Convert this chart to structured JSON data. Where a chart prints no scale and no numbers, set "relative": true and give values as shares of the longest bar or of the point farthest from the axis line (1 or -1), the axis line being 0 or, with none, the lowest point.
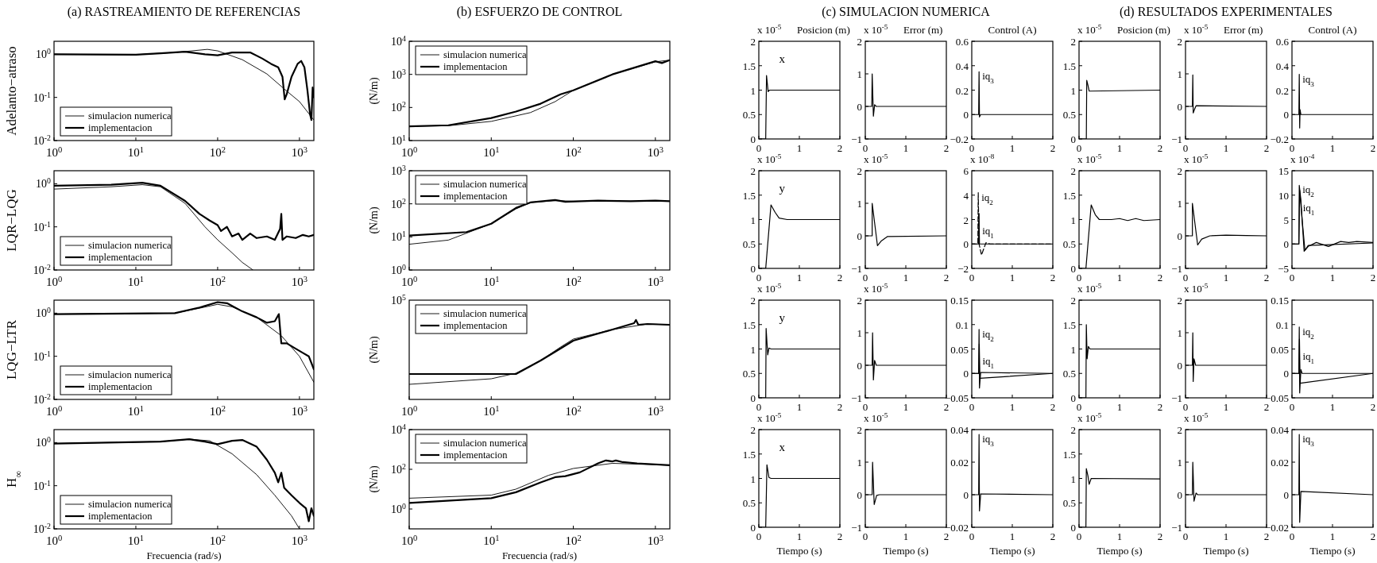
{
  "chart_data": [
    {
      "type": "line",
      "title": "(a) RASTREAMIENTO DE REFERENCIAS",
      "ylabel": "Adelanto−atraso",
      "log": "xy",
      "legend": "bottom left",
      "xlim": [
        1,
        1500
      ],
      "ylim": [
        0.01,
        2
      ],
      "xticks": [
        {
          "value": 1,
          "label": "10$^{0}$"
        },
        {
          "value": 10,
          "label": "10$^{1}$"
        },
        {
          "value": 100,
          "label": "10$^{2}$"
        },
        {
          "value": 1000,
          "label": "10$^{3}$"
        }
      ],
      "yticks": [
        {
          "value": 0.01,
          "label": "10$^{-2}$"
        },
        {
          "value": 0.1,
          "label": "10$^{-1}$"
        },
        {
          "value": 1,
          "label": "10$^{0}$"
        }
      ],
      "series": [
        {
          "name": "simulacion numerica",
          "color": "#000000",
          "x": [
            1,
            10,
            30,
            75,
            100,
            200,
            400,
            700,
            1000,
            1500
          ],
          "values": [
            1,
            0.98,
            1.1,
            1.3,
            1.2,
            0.75,
            0.35,
            0.14,
            0.08,
            0.03
          ]
        },
        {
          "name": "implementacion",
          "color": "#000000",
          "x": [
            1,
            10,
            20,
            40,
            70,
            100,
            150,
            250,
            350,
            450,
            550,
            620,
            660,
            700,
            800,
            950,
            1050,
            1150,
            1250,
            1350,
            1400,
            1450,
            1500
          ],
          "values": [
            1,
            0.98,
            1.05,
            1.15,
            1.0,
            0.95,
            1.1,
            1.1,
            0.8,
            0.6,
            0.5,
            0.3,
            0.09,
            0.12,
            0.3,
            0.6,
            0.7,
            0.5,
            0.15,
            0.04,
            0.03,
            0.17,
            0.1
          ]
        }
      ]
    },
    {
      "type": "line",
      "ylabel": "LQR−LQG",
      "log": "xy",
      "legend": "bottom left",
      "xlim": [
        1,
        1500
      ],
      "ylim": [
        0.01,
        2
      ],
      "xticks": [
        {
          "value": 1,
          "label": "10$^{0}$"
        },
        {
          "value": 10,
          "label": "10$^{1}$"
        },
        {
          "value": 100,
          "label": "10$^{2}$"
        },
        {
          "value": 1000,
          "label": "10$^{3}$"
        }
      ],
      "yticks": [
        {
          "value": 0.01,
          "label": "10$^{-2}$"
        },
        {
          "value": 0.1,
          "label": "10$^{-1}$"
        },
        {
          "value": 1,
          "label": "10$^{0}$"
        }
      ],
      "series": [
        {
          "name": "simulacion numerica",
          "color": "#000000",
          "x": [
            1,
            5,
            12,
            20,
            40,
            70,
            100,
            150,
            200,
            270
          ],
          "values": [
            0.75,
            0.85,
            0.95,
            0.85,
            0.35,
            0.1,
            0.05,
            0.025,
            0.015,
            0.01
          ]
        },
        {
          "name": "implementacion",
          "color": "#000000",
          "x": [
            1,
            5,
            12,
            20,
            40,
            60,
            80,
            100,
            110,
            130,
            150,
            180,
            200,
            250,
            300,
            400,
            500,
            580,
            600,
            620,
            700,
            900,
            1100,
            1300,
            1500
          ],
          "values": [
            0.9,
            0.95,
            1.05,
            0.9,
            0.4,
            0.2,
            0.14,
            0.11,
            0.08,
            0.1,
            0.06,
            0.07,
            0.05,
            0.07,
            0.055,
            0.06,
            0.05,
            0.09,
            0.2,
            0.05,
            0.06,
            0.055,
            0.065,
            0.06,
            0.065
          ]
        }
      ]
    },
    {
      "type": "line",
      "ylabel": "LQG−LTR",
      "log": "xy",
      "legend": "bottom left",
      "xlim": [
        1,
        1500
      ],
      "ylim": [
        0.01,
        2
      ],
      "xticks": [
        {
          "value": 1,
          "label": "10$^{0}$"
        },
        {
          "value": 10,
          "label": "10$^{1}$"
        },
        {
          "value": 100,
          "label": "10$^{2}$"
        },
        {
          "value": 1000,
          "label": "10$^{3}$"
        }
      ],
      "yticks": [
        {
          "value": 0.01,
          "label": "10$^{-2}$"
        },
        {
          "value": 0.1,
          "label": "10$^{-1}$"
        },
        {
          "value": 1,
          "label": "10$^{0}$"
        }
      ],
      "series": [
        {
          "name": "simulacion numerica",
          "color": "#000000",
          "x": [
            1,
            30,
            60,
            100,
            150,
            300,
            600,
            1000,
            1500
          ],
          "values": [
            0.95,
            1.0,
            1.3,
            1.6,
            1.4,
            0.8,
            0.3,
            0.1,
            0.025
          ]
        },
        {
          "name": "implementacion",
          "color": "#000000",
          "x": [
            1,
            30,
            60,
            100,
            130,
            200,
            300,
            400,
            500,
            560,
            600,
            700,
            900,
            1100,
            1300,
            1500
          ],
          "values": [
            0.95,
            1.0,
            1.35,
            1.8,
            1.7,
            1.1,
            0.8,
            0.6,
            0.65,
            0.95,
            0.2,
            0.2,
            0.15,
            0.12,
            0.1,
            0.05
          ]
        }
      ]
    },
    {
      "type": "line",
      "ylabel": "H$_{∞}$",
      "xlabel": "Frecuencia (rad/s)",
      "log": "xy",
      "legend": "bottom left",
      "xlim": [
        1,
        1500
      ],
      "ylim": [
        0.01,
        2
      ],
      "xticks": [
        {
          "value": 1,
          "label": "10$^{0}$"
        },
        {
          "value": 10,
          "label": "10$^{1}$"
        },
        {
          "value": 100,
          "label": "10$^{2}$"
        },
        {
          "value": 1000,
          "label": "10$^{3}$"
        }
      ],
      "yticks": [
        {
          "value": 0.01,
          "label": "10$^{-2}$"
        },
        {
          "value": 0.1,
          "label": "10$^{-1}$"
        },
        {
          "value": 1,
          "label": "10$^{0}$"
        }
      ],
      "series": [
        {
          "name": "simulacion numerica",
          "color": "#000000",
          "x": [
            1,
            20,
            45,
            80,
            150,
            300,
            500,
            800,
            1000
          ],
          "values": [
            0.95,
            1.05,
            1.2,
            1.1,
            0.55,
            0.18,
            0.06,
            0.02,
            0.01
          ]
        },
        {
          "name": "implementacion",
          "color": "#000000",
          "x": [
            1,
            20,
            45,
            70,
            100,
            150,
            200,
            300,
            400,
            500,
            550,
            600,
            650,
            800,
            1000,
            1200,
            1300,
            1400,
            1500
          ],
          "values": [
            0.95,
            1.05,
            1.2,
            1.05,
            0.92,
            1.1,
            1.15,
            0.8,
            0.4,
            0.2,
            0.12,
            0.2,
            0.09,
            0.06,
            0.04,
            0.03,
            0.015,
            0.03,
            0.02
          ]
        }
      ]
    },
    {
      "type": "line",
      "title": "(b) ESFUERZO DE CONTROL",
      "ylabel": "(N/m)",
      "log": "xy",
      "legend": "top left",
      "xlim": [
        1,
        1500
      ],
      "ylim": [
        10,
        10000
      ],
      "xticks": [
        {
          "value": 1,
          "label": "10$^{0}$"
        },
        {
          "value": 10,
          "label": "10$^{1}$"
        },
        {
          "value": 100,
          "label": "10$^{2}$"
        },
        {
          "value": 1000,
          "label": "10$^{3}$"
        }
      ],
      "yticks": [
        {
          "value": 10,
          "label": "10$^{1}$"
        },
        {
          "value": 100,
          "label": "10$^{2}$"
        },
        {
          "value": 1000,
          "label": "10$^{3}$"
        },
        {
          "value": 10000,
          "label": "10$^{4}$"
        }
      ],
      "series": [
        {
          "name": "simulacion numerica",
          "color": "#000000",
          "x": [
            1,
            3,
            10,
            30,
            60,
            100,
            300,
            1000,
            1500
          ],
          "values": [
            27,
            28,
            38,
            70,
            150,
            330,
            1000,
            2400,
            2700
          ]
        },
        {
          "name": "implementacion",
          "color": "#000000",
          "x": [
            1,
            3,
            10,
            20,
            40,
            70,
            100,
            300,
            1000,
            1200,
            1500
          ],
          "values": [
            27,
            29,
            48,
            75,
            130,
            250,
            330,
            1000,
            2500,
            2200,
            2700
          ]
        }
      ]
    },
    {
      "type": "line",
      "ylabel": "(N/m)",
      "log": "xy",
      "legend": "top left",
      "xlim": [
        1,
        1500
      ],
      "ylim": [
        1,
        1000
      ],
      "xticks": [
        {
          "value": 1,
          "label": "10$^{0}$"
        },
        {
          "value": 10,
          "label": "10$^{1}$"
        },
        {
          "value": 100,
          "label": "10$^{2}$"
        },
        {
          "value": 1000,
          "label": "10$^{3}$"
        }
      ],
      "yticks": [
        {
          "value": 1,
          "label": "10$^{0}$"
        },
        {
          "value": 10,
          "label": "10$^{1}$"
        },
        {
          "value": 100,
          "label": "10$^{2}$"
        },
        {
          "value": 1000,
          "label": "10$^{3}$"
        }
      ],
      "series": [
        {
          "name": "simulacion numerica",
          "color": "#000000",
          "x": [
            1,
            3,
            10,
            20,
            30,
            60,
            100,
            1500
          ],
          "values": [
            6,
            8,
            25,
            70,
            110,
            125,
            120,
            120
          ]
        },
        {
          "name": "implementacion",
          "color": "#000000",
          "x": [
            1,
            5,
            10,
            20,
            30,
            60,
            80,
            200,
            500,
            1000,
            1500
          ],
          "values": [
            11,
            14,
            25,
            75,
            110,
            130,
            115,
            125,
            120,
            125,
            120
          ]
        }
      ]
    },
    {
      "type": "line",
      "ylabel": "(N/m)",
      "annotations": [
        "10$^{5}$"
      ],
      "relative": true,
      "log": "x",
      "legend": "top left",
      "xlim": [
        1,
        1500
      ],
      "xticks": [
        {
          "value": 1,
          "label": "10$^{0}$"
        },
        {
          "value": 10,
          "label": "10$^{1}$"
        },
        {
          "value": 100,
          "label": "10$^{2}$"
        },
        {
          "value": 1000,
          "label": "10$^{3}$"
        }
      ],
      "series": [
        {
          "name": "simulacion numerica",
          "color": "#000000",
          "x": [
            1,
            10,
            20,
            40,
            70,
            100,
            300,
            800,
            1500
          ],
          "values": [
            0.19,
            0.26,
            0.33,
            0.49,
            0.66,
            0.76,
            0.88,
            0.95,
            0.94
          ]
        },
        {
          "name": "implementacion",
          "color": "#000000",
          "x": [
            1,
            20,
            40,
            60,
            100,
            300,
            550,
            580,
            620,
            800,
            1500
          ],
          "values": [
            0.32,
            0.32,
            0.49,
            0.6,
            0.74,
            0.88,
            0.96,
            1.0,
            0.94,
            0.95,
            0.94
          ]
        }
      ]
    },
    {
      "type": "line",
      "ylabel": "(N/m)",
      "xlabel": "Frecuencia (rad/s)",
      "log": "xy",
      "legend": "top left",
      "xlim": [
        1,
        1500
      ],
      "ylim": [
        0.1,
        10000
      ],
      "xticks": [
        {
          "value": 1,
          "label": "10$^{0}$"
        },
        {
          "value": 10,
          "label": "10$^{1}$"
        },
        {
          "value": 100,
          "label": "10$^{2}$"
        },
        {
          "value": 1000,
          "label": "10$^{3}$"
        }
      ],
      "yticks": [
        {
          "value": 1,
          "label": "10$^{0}$"
        },
        {
          "value": 100,
          "label": "10$^{2}$"
        },
        {
          "value": 10000,
          "label": "10$^{4}$"
        }
      ],
      "series": [
        {
          "name": "simulacion numerica",
          "color": "#000000",
          "x": [
            1,
            10,
            20,
            50,
            100,
            300,
            1500
          ],
          "values": [
            3.5,
            5,
            10,
            50,
            110,
            200,
            160
          ]
        },
        {
          "name": "implementacion",
          "color": "#000000",
          "x": [
            1,
            10,
            20,
            40,
            60,
            80,
            120,
            200,
            250,
            300,
            330,
            400,
            600,
            1500
          ],
          "values": [
            2,
            3.5,
            7,
            22,
            40,
            45,
            70,
            200,
            280,
            250,
            280,
            230,
            200,
            160
          ]
        }
      ]
    },
    {
      "type": "line",
      "title": "(c) SIMULACION NUMERICA",
      "subtitle": "Posicion (m)",
      "ylabel": "x 10$^{-5}$",
      "annotations": [
        "x"
      ],
      "xlim": [
        0,
        2
      ],
      "ylim": [
        0,
        2
      ],
      "xticks": [
        0,
        1,
        2
      ],
      "yticks": [
        0,
        0.5,
        1,
        1.5,
        2
      ],
      "series": [
        {
          "color": "#000000",
          "x": [
            0,
            0.17,
            0.19,
            0.23,
            0.26,
            2
          ],
          "values": [
            0,
            0,
            1.3,
            0.97,
            1.0,
            1.0
          ]
        }
      ]
    },
    {
      "type": "line",
      "subtitle": "Error (m)",
      "ylabel": "x 10$^{-5}$",
      "xlim": [
        0,
        2
      ],
      "ylim": [
        -1,
        2
      ],
      "xticks": [
        0,
        1,
        2
      ],
      "yticks": [
        -1,
        0,
        1,
        2
      ],
      "series": [
        {
          "color": "#000000",
          "x": [
            0,
            0.16,
            0.17,
            0.2,
            0.23,
            0.27,
            2
          ],
          "values": [
            0,
            0,
            1.0,
            -0.3,
            0.05,
            0,
            0
          ]
        }
      ]
    },
    {
      "type": "line",
      "subtitle": "Control (A)",
      "xlim": [
        0,
        2
      ],
      "ylim": [
        -0.2,
        0.6
      ],
      "xticks": [
        0,
        1,
        2
      ],
      "yticks": [
        -0.2,
        0,
        0.2,
        0.4,
        0.6
      ],
      "series": [
        {
          "name": "iq$_{3}$",
          "color": "#000000",
          "x": [
            0,
            0.17,
            0.18,
            0.19,
            0.22,
            2
          ],
          "values": [
            0,
            0,
            0.35,
            -0.02,
            0,
            0
          ]
        }
      ]
    },
    {
      "type": "line",
      "ylabel": "x 10$^{-5}$",
      "annotations": [
        "y"
      ],
      "xlim": [
        0,
        2
      ],
      "ylim": [
        0,
        2
      ],
      "xticks": [
        0,
        1,
        2
      ],
      "yticks": [
        0,
        0.5,
        1,
        1.5,
        2
      ],
      "series": [
        {
          "color": "#000000",
          "x": [
            0,
            0.17,
            0.3,
            0.4,
            0.5,
            0.7,
            2
          ],
          "values": [
            0,
            0,
            1.3,
            1.15,
            1.03,
            1.0,
            1.0
          ]
        }
      ]
    },
    {
      "type": "line",
      "ylabel": "x 10$^{-5}$",
      "xlim": [
        0,
        2
      ],
      "ylim": [
        -1,
        2
      ],
      "xticks": [
        0,
        1,
        2
      ],
      "yticks": [
        -1,
        0,
        1,
        2
      ],
      "series": [
        {
          "color": "#000000",
          "x": [
            0,
            0.17,
            0.17,
            0.3,
            0.4,
            0.55,
            2
          ],
          "values": [
            0,
            0,
            1,
            -0.3,
            -0.15,
            -0.02,
            0
          ]
        }
      ]
    },
    {
      "type": "line",
      "ylabel": "x 10$^{-8}$",
      "xlim": [
        0,
        2
      ],
      "ylim": [
        -2,
        6
      ],
      "xticks": [
        0,
        1,
        2
      ],
      "yticks": [
        -2,
        0,
        2,
        4,
        6
      ],
      "series": [
        {
          "name": "iq$_{2}$",
          "color": "#000000",
          "line_style": "dashed",
          "x": [
            0,
            0.15,
            0.16,
            0.18,
            0.24,
            0.35,
            0.45,
            2
          ],
          "values": [
            0,
            0,
            4.2,
            0,
            -0.9,
            0.1,
            0,
            0
          ]
        },
        {
          "name": "iq$_{1}$",
          "color": "#000000",
          "x": [
            0,
            0.17,
            0.18,
            0.19,
            2
          ],
          "values": [
            0,
            0,
            2.5,
            0,
            0
          ]
        }
      ]
    },
    {
      "type": "line",
      "ylabel": "x 10$^{-5}$",
      "annotations": [
        "y"
      ],
      "xlim": [
        0,
        2
      ],
      "ylim": [
        0,
        2
      ],
      "xticks": [
        0,
        1,
        2
      ],
      "yticks": [
        0,
        0.5,
        1,
        1.5,
        2
      ],
      "series": [
        {
          "color": "#000000",
          "x": [
            0,
            0.17,
            0.18,
            0.22,
            0.25,
            0.3,
            2
          ],
          "values": [
            0,
            0,
            1.42,
            0.88,
            1.02,
            1,
            1
          ]
        }
      ]
    },
    {
      "type": "line",
      "ylabel": "x 10$^{-5}$",
      "xlim": [
        0,
        2
      ],
      "ylim": [
        -1,
        2
      ],
      "xticks": [
        0,
        1,
        2
      ],
      "yticks": [
        -1,
        0,
        1,
        2
      ],
      "series": [
        {
          "color": "#000000",
          "x": [
            0,
            0.17,
            0.18,
            0.2,
            0.23,
            0.27,
            2
          ],
          "values": [
            0,
            0,
            1,
            -0.45,
            0.15,
            0,
            0
          ]
        }
      ]
    },
    {
      "type": "line",
      "xlim": [
        0,
        2
      ],
      "ylim": [
        -0.05,
        0.15
      ],
      "xticks": [
        0,
        1,
        2
      ],
      "yticks": [
        -0.05,
        0,
        0.05,
        0.1,
        0.15
      ],
      "series": [
        {
          "name": "iq$_{2}$",
          "color": "#000000",
          "x": [
            0,
            0.17,
            0.18,
            0.19,
            0.22,
            2
          ],
          "values": [
            0,
            0,
            0.09,
            -0.03,
            0.002,
            0
          ]
        },
        {
          "name": "iq$_{1}$",
          "color": "#000000",
          "x": [
            0,
            0.17,
            0.185,
            0.2,
            2
          ],
          "values": [
            0,
            0,
            0.06,
            -0.01,
            0
          ]
        }
      ]
    },
    {
      "type": "line",
      "xlabel": "Tiempo (s)",
      "ylabel": "x 10$^{-5}$",
      "annotations": [
        "x"
      ],
      "xlim": [
        0,
        2
      ],
      "ylim": [
        0,
        2
      ],
      "xticks": [
        0,
        1,
        2
      ],
      "yticks": [
        0,
        0.5,
        1,
        1.5,
        2
      ],
      "series": [
        {
          "color": "#000000",
          "x": [
            0,
            0.17,
            0.2,
            0.25,
            0.3,
            2
          ],
          "values": [
            0,
            0,
            1.28,
            1.02,
            1,
            1
          ]
        }
      ]
    },
    {
      "type": "line",
      "xlabel": "Tiempo (s)",
      "ylabel": "x 10$^{-5}$",
      "xlim": [
        0,
        2
      ],
      "ylim": [
        -1,
        2
      ],
      "xticks": [
        0,
        1,
        2
      ],
      "yticks": [
        -1,
        0,
        1,
        2
      ],
      "series": [
        {
          "color": "#000000",
          "x": [
            0,
            0.17,
            0.18,
            0.22,
            0.28,
            0.35,
            2
          ],
          "values": [
            0,
            0,
            1,
            -0.3,
            -0.02,
            0,
            0
          ]
        }
      ]
    },
    {
      "type": "line",
      "xlabel": "Tiempo (s)",
      "xlim": [
        0,
        2
      ],
      "ylim": [
        -0.02,
        0.04
      ],
      "xticks": [
        0,
        1,
        2
      ],
      "yticks": [
        -0.02,
        0,
        0.02,
        0.04
      ],
      "series": [
        {
          "name": "iq$_{3}$",
          "color": "#000000",
          "x": [
            0,
            0.17,
            0.18,
            0.19,
            0.22,
            2
          ],
          "values": [
            0,
            0,
            0.037,
            -0.01,
            0.0005,
            0
          ]
        }
      ]
    },
    {
      "type": "line",
      "title": "(d) RESULTADOS EXPERIMENTALES",
      "subtitle": "Posicion (m)",
      "ylabel": "x 10$^{-5}$",
      "xlim": [
        0,
        2
      ],
      "ylim": [
        0,
        2
      ],
      "xticks": [
        0,
        1,
        2
      ],
      "yticks": [
        0,
        0.5,
        1,
        1.5,
        2
      ],
      "series": [
        {
          "color": "#000000",
          "x": [
            0,
            0.18,
            0.19,
            0.22,
            0.25,
            2
          ],
          "values": [
            0,
            0,
            1.2,
            1.1,
            0.98,
            1.0
          ]
        }
      ]
    },
    {
      "type": "line",
      "subtitle": "Error (m)",
      "ylabel": "x 10$^{-5}$",
      "xlim": [
        0,
        2
      ],
      "ylim": [
        -1,
        2
      ],
      "xticks": [
        0,
        1,
        2
      ],
      "yticks": [
        -1,
        0,
        1,
        2
      ],
      "series": [
        {
          "color": "#000000",
          "x": [
            0,
            0.17,
            0.18,
            0.19,
            0.22,
            0.26,
            2
          ],
          "values": [
            0,
            0,
            0.97,
            -0.2,
            -0.1,
            0.02,
            0
          ]
        }
      ]
    },
    {
      "type": "line",
      "subtitle": "Control (A)",
      "xlim": [
        0,
        2
      ],
      "ylim": [
        -0.2,
        0.6
      ],
      "xticks": [
        0,
        1,
        2
      ],
      "yticks": [
        -0.2,
        0,
        0.2,
        0.4,
        0.6
      ],
      "series": [
        {
          "name": "iq$_{3}$",
          "color": "#000000",
          "x": [
            0,
            0.17,
            0.18,
            0.19,
            0.2,
            0.22,
            2
          ],
          "values": [
            0,
            0,
            0.33,
            -0.11,
            0.04,
            0,
            0
          ]
        }
      ]
    },
    {
      "type": "line",
      "ylabel": "x 10$^{-5}$",
      "xlim": [
        0,
        2
      ],
      "ylim": [
        0,
        2
      ],
      "xticks": [
        0,
        1,
        2
      ],
      "yticks": [
        0,
        0.5,
        1,
        1.5,
        2
      ],
      "series": [
        {
          "color": "#000000",
          "x": [
            0,
            0.17,
            0.3,
            0.4,
            0.5,
            0.8,
            1,
            1.2,
            1.4,
            1.6,
            2
          ],
          "values": [
            0,
            0,
            1.3,
            1.1,
            1.0,
            1.0,
            1.02,
            0.98,
            1.02,
            0.98,
            1.0
          ]
        }
      ]
    },
    {
      "type": "line",
      "ylabel": "x 10$^{-5}$",
      "xlim": [
        0,
        2
      ],
      "ylim": [
        -1,
        2
      ],
      "xticks": [
        0,
        1,
        2
      ],
      "yticks": [
        -1,
        0,
        1,
        2
      ],
      "series": [
        {
          "color": "#000000",
          "x": [
            0,
            0.17,
            0.17,
            0.3,
            0.4,
            0.6,
            1.0,
            1.5,
            2
          ],
          "values": [
            0,
            0,
            1,
            -0.28,
            -0.1,
            0,
            0.02,
            0.01,
            0
          ]
        }
      ]
    },
    {
      "type": "line",
      "ylabel": "x 10$^{-4}$",
      "xlim": [
        0,
        2
      ],
      "ylim": [
        -5,
        15
      ],
      "xticks": [
        0,
        1,
        2
      ],
      "yticks": [
        -5,
        0,
        5,
        10,
        15
      ],
      "series": [
        {
          "name": "iq$_{2}$",
          "color": "#000000",
          "x": [
            0,
            0.17,
            0.18,
            0.22,
            0.3,
            0.4,
            0.6,
            0.9,
            1.2,
            1.4,
            1.6,
            2
          ],
          "values": [
            0,
            0,
            12,
            9,
            -1.5,
            -0.5,
            0.3,
            -0.5,
            0.5,
            0.3,
            0.5,
            0.3
          ]
        },
        {
          "name": "iq$_{1}$",
          "color": "#000000",
          "x": [
            0,
            0.17,
            0.19,
            0.25,
            0.32,
            0.4,
            2
          ],
          "values": [
            0,
            0,
            11,
            5,
            -1.3,
            -0.3,
            0.2
          ]
        }
      ]
    },
    {
      "type": "line",
      "ylabel": "x 10$^{-5}$",
      "xlim": [
        0,
        2
      ],
      "ylim": [
        0,
        2
      ],
      "xticks": [
        0,
        1,
        2
      ],
      "yticks": [
        0,
        0.5,
        1,
        1.5,
        2
      ],
      "series": [
        {
          "color": "#000000",
          "x": [
            0,
            0.17,
            0.18,
            0.2,
            0.23,
            0.27,
            2
          ],
          "values": [
            0,
            0,
            1.5,
            0.8,
            1.05,
            1,
            1
          ]
        }
      ]
    },
    {
      "type": "line",
      "ylabel": "x 10$^{-5}$",
      "xlim": [
        0,
        2
      ],
      "ylim": [
        -1,
        2
      ],
      "xticks": [
        0,
        1,
        2
      ],
      "yticks": [
        -1,
        0,
        1,
        2
      ],
      "series": [
        {
          "color": "#000000",
          "x": [
            0,
            0.17,
            0.18,
            0.19,
            0.21,
            0.25,
            2
          ],
          "values": [
            0,
            0,
            1,
            -0.5,
            0.2,
            0,
            0
          ]
        }
      ]
    },
    {
      "type": "line",
      "xlim": [
        0,
        2
      ],
      "ylim": [
        -0.05,
        0.15
      ],
      "xticks": [
        0,
        1,
        2
      ],
      "yticks": [
        -0.05,
        0,
        0.05,
        0.1,
        0.15
      ],
      "series": [
        {
          "name": "iq$_{2}$",
          "color": "#000000",
          "x": [
            0,
            0.17,
            0.18,
            0.19,
            0.22,
            0.25,
            2
          ],
          "values": [
            0,
            0,
            0.095,
            -0.04,
            0.008,
            0,
            0
          ]
        },
        {
          "name": "iq$_{1}$",
          "color": "#000000",
          "x": [
            0,
            0.17,
            0.185,
            0.2,
            2
          ],
          "values": [
            0,
            0,
            0.07,
            -0.02,
            0
          ]
        }
      ]
    },
    {
      "type": "line",
      "xlabel": "Tiempo (s)",
      "ylabel": "x 10$^{-5}$",
      "xlim": [
        0,
        2
      ],
      "ylim": [
        0,
        2
      ],
      "xticks": [
        0,
        1,
        2
      ],
      "yticks": [
        0,
        0.5,
        1,
        1.5,
        2
      ],
      "series": [
        {
          "color": "#000000",
          "x": [
            0,
            0.17,
            0.18,
            0.22,
            0.25,
            0.3,
            2
          ],
          "values": [
            0,
            0,
            1.2,
            1.05,
            0.88,
            1,
            0.99
          ]
        }
      ]
    },
    {
      "type": "line",
      "xlabel": "Tiempo (s)",
      "ylabel": "x 10$^{-5}$",
      "xlim": [
        0,
        2
      ],
      "ylim": [
        -1,
        2
      ],
      "xticks": [
        0,
        1,
        2
      ],
      "yticks": [
        -1,
        0,
        1,
        2
      ],
      "series": [
        {
          "color": "#000000",
          "x": [
            0,
            0.17,
            0.18,
            0.21,
            0.26,
            0.3,
            2
          ],
          "values": [
            0,
            0,
            1,
            -0.2,
            0.05,
            0,
            0
          ]
        }
      ]
    },
    {
      "type": "line",
      "xlabel": "Tiempo (s)",
      "xlim": [
        0,
        2
      ],
      "ylim": [
        -0.02,
        0.04
      ],
      "xticks": [
        0,
        1,
        2
      ],
      "yticks": [
        -0.02,
        0,
        0.02,
        0.04
      ],
      "series": [
        {
          "name": "iq$_{3}$",
          "color": "#000000",
          "x": [
            0,
            0.17,
            0.18,
            0.19,
            0.22,
            2
          ],
          "values": [
            0,
            0,
            0.037,
            -0.017,
            0.002,
            0
          ]
        }
      ]
    }
  ]
}
